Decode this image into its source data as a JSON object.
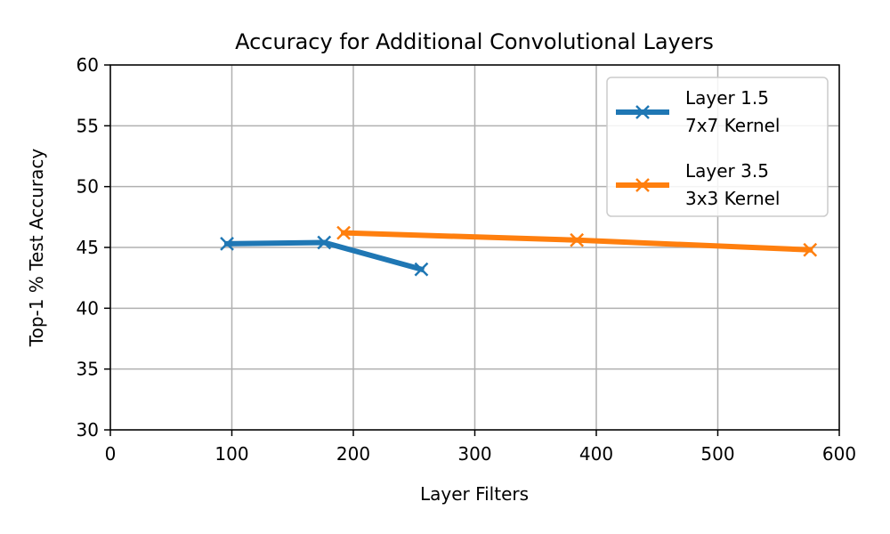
{
  "chart_data": {
    "type": "line",
    "title": "Accuracy for Additional Convolutional Layers",
    "xlabel": "Layer Filters",
    "ylabel": "Top-1 % Test Accuracy",
    "xlim": [
      0,
      600
    ],
    "ylim": [
      30,
      60
    ],
    "xticks": [
      0,
      100,
      200,
      300,
      400,
      500,
      600
    ],
    "yticks": [
      30,
      35,
      40,
      45,
      50,
      55,
      60
    ],
    "grid": true,
    "legend_position": "top-right",
    "series": [
      {
        "name": "Layer 1.5\n7x7 Kernel",
        "color": "#1f77b4",
        "marker": "x",
        "x": [
          96,
          176,
          256
        ],
        "y": [
          45.3,
          45.4,
          43.2
        ]
      },
      {
        "name": "Layer 3.5\n3x3 Kernel",
        "color": "#ff7f0e",
        "marker": "x",
        "x": [
          192,
          384,
          576
        ],
        "y": [
          46.2,
          45.6,
          44.8
        ]
      }
    ]
  }
}
